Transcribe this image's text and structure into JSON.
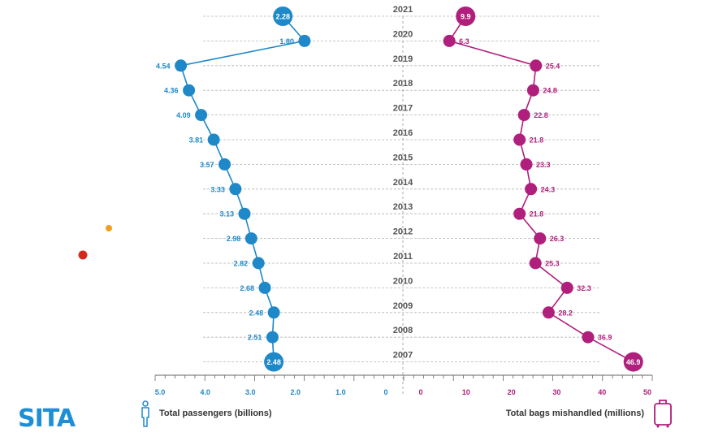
{
  "chart_data": {
    "type": "line",
    "years": [
      "2021",
      "2020",
      "2019",
      "2018",
      "2017",
      "2016",
      "2015",
      "2014",
      "2013",
      "2012",
      "2011",
      "2010",
      "2009",
      "2008",
      "2007"
    ],
    "series": [
      {
        "name": "Total passengers (billions)",
        "color": "#1e88c8",
        "values": [
          2.28,
          1.8,
          4.54,
          4.36,
          4.09,
          3.81,
          3.57,
          3.33,
          3.13,
          2.98,
          2.82,
          2.68,
          2.48,
          2.51,
          2.48
        ],
        "labels": [
          "2.28",
          "1.80",
          "4.54",
          "4.36",
          "4.09",
          "3.81",
          "3.57",
          "3.33",
          "3.13",
          "2.98",
          "2.82",
          "2.68",
          "2.48",
          "2.51",
          "2.48"
        ]
      },
      {
        "name": "Total bags mishandled (millions)",
        "color": "#b01f7c",
        "values": [
          9.9,
          6.3,
          25.4,
          24.8,
          22.8,
          21.8,
          23.3,
          24.3,
          21.8,
          26.3,
          25.3,
          32.3,
          28.2,
          36.9,
          46.9
        ],
        "labels": [
          "9.9",
          "6.3",
          "25.4",
          "24.8",
          "22.8",
          "21.8",
          "23.3",
          "24.3",
          "21.8",
          "26.3",
          "25.3",
          "32.3",
          "28.2",
          "36.9",
          "46.9"
        ]
      }
    ],
    "left_axis": {
      "ticks": [
        "5.0",
        "4.0",
        "3.0",
        "2.0",
        "1.0",
        "0"
      ],
      "range": [
        5.0,
        0
      ]
    },
    "right_axis": {
      "ticks": [
        "0",
        "10",
        "20",
        "30",
        "40",
        "50"
      ],
      "range": [
        0,
        50
      ]
    }
  },
  "legend": {
    "passengers": "Total passengers (billions)",
    "bags": "Total bags mishandled (millions)"
  },
  "logo": "SITA",
  "colors": {
    "passengers": "#1e88c8",
    "bags": "#b01f7c",
    "grid": "#b5b5b5",
    "year": "#555555"
  }
}
